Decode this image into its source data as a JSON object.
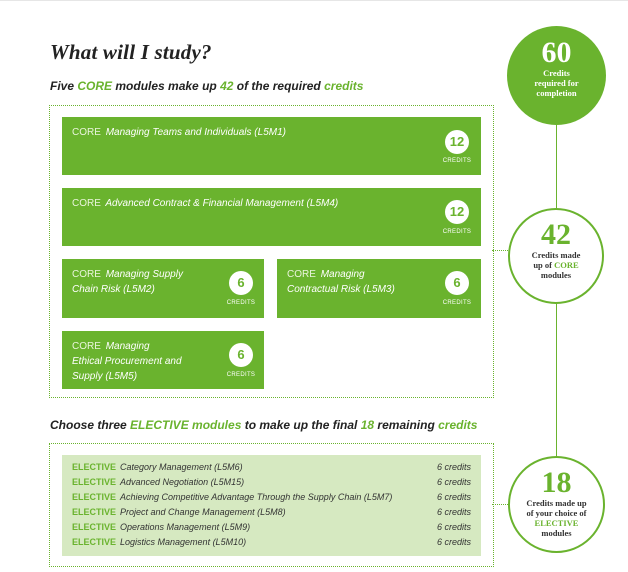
{
  "title": "What will I study?",
  "core_heading": {
    "pre": "Five ",
    "core_word": "CORE",
    "mid": " modules make up ",
    "number": "42",
    "post": " of the required ",
    "credits_word": "credits"
  },
  "elective_heading": {
    "pre": "Choose three ",
    "elective_word": "ELECTIVE modules",
    "mid": " to make up the final ",
    "number": "18",
    "post": " remaining ",
    "credits_word": "credits"
  },
  "core_modules": [
    {
      "tag": "CORE",
      "name": "Managing Teams and Individuals (L5M1)",
      "credits": "12",
      "credits_label": "CREDITS"
    },
    {
      "tag": "CORE",
      "name": "Advanced Contract & Financial Management (L5M4)",
      "credits": "12",
      "credits_label": "CREDITS"
    },
    {
      "tag": "CORE",
      "name_line1": "Managing Supply",
      "name_line2": "Chain Risk (L5M2)",
      "credits": "6",
      "credits_label": "CREDITS"
    },
    {
      "tag": "CORE",
      "name_line1": "Managing",
      "name_line2": "Contractual Risk (L5M3)",
      "credits": "6",
      "credits_label": "CREDITS"
    },
    {
      "tag": "CORE",
      "name_line1": "Managing",
      "name_line2": "Ethical Procurement and",
      "name_line3": "Supply (L5M5)",
      "credits": "6",
      "credits_label": "CREDITS"
    }
  ],
  "elective_modules": [
    {
      "tag": "ELECTIVE",
      "name": "Category Management (L5M6)",
      "credits": "6 credits"
    },
    {
      "tag": "ELECTIVE",
      "name": "Advanced Negotiation (L5M15)",
      "credits": "6 credits"
    },
    {
      "tag": "ELECTIVE",
      "name": "Achieving Competitive Advantage Through the Supply Chain (L5M7)",
      "credits": "6 credits"
    },
    {
      "tag": "ELECTIVE",
      "name": "Project and Change Management (L5M8)",
      "credits": "6 credits"
    },
    {
      "tag": "ELECTIVE",
      "name": "Operations Management (L5M9)",
      "credits": "6 credits"
    },
    {
      "tag": "ELECTIVE",
      "name": "Logistics Management (L5M10)",
      "credits": "6 credits"
    }
  ],
  "circles": {
    "total": {
      "number": "60",
      "line1": "Credits",
      "line2": "required for",
      "line3": "completion"
    },
    "core": {
      "number": "42",
      "line1": "Credits made",
      "line2_pre": "up of ",
      "line2_green": "CORE",
      "line3": "modules"
    },
    "elective": {
      "number": "18",
      "line1": "Credits made up",
      "line2": "of your choice of",
      "line3_green": "ELECTIVE",
      "line4": "modules"
    }
  },
  "colors": {
    "green": "#6ab32e",
    "light_green": "#d6e9c1"
  }
}
